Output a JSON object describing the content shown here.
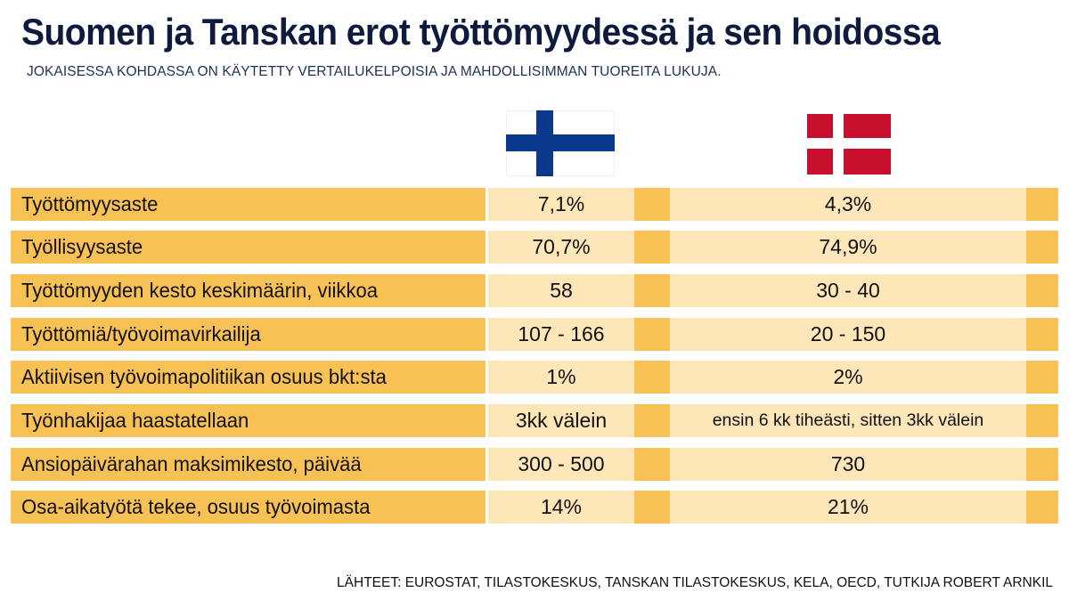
{
  "title": "Suomen ja Tanskan erot työttömyydessä ja sen hoidossa",
  "subtitle": "JOKAISESSA KOHDASSA ON KÄYTETTY VERTAILUKELPOISIA JA MAHDOLLISIMMAN TUOREITA LUKUJA.",
  "colors": {
    "title": "#0f1b3d",
    "label_bg": "#f7c253",
    "value_bg": "#fde6b8",
    "fi_blue": "#0b3a8c",
    "dk_red": "#c8102e"
  },
  "flags": {
    "finland": "finland-flag-icon",
    "denmark": "denmark-flag-icon"
  },
  "rows": [
    {
      "label": "Työttömyysaste",
      "fi": "7,1%",
      "dk": "4,3%"
    },
    {
      "label": "Työllisyysaste",
      "fi": "70,7%",
      "dk": "74,9%"
    },
    {
      "label": "Työttömyyden kesto keskimäärin, viikkoa",
      "fi": "58",
      "dk": "30 - 40"
    },
    {
      "label": "Työttömiä/työvoimavirkailija",
      "fi": "107 - 166",
      "dk": "20 - 150"
    },
    {
      "label": "Aktiivisen työvoimapolitiikan osuus bkt:sta",
      "fi": "1%",
      "dk": "2%"
    },
    {
      "label": "Työnhakijaa haastatellaan",
      "fi": "3kk välein",
      "dk": "ensin 6 kk tiheästi, sitten 3kk välein"
    },
    {
      "label": "Ansiopäivärahan maksimikesto, päivää",
      "fi": "300 - 500",
      "dk": "730"
    },
    {
      "label": "Osa-aikatyötä tekee, osuus työvoimasta",
      "fi": "14%",
      "dk": "21%"
    }
  ],
  "footer": "LÄHTEET: EUROSTAT, TILASTOKESKUS, TANSKAN TILASTOKESKUS, KELA, OECD, TUTKIJA ROBERT ARNKIL"
}
